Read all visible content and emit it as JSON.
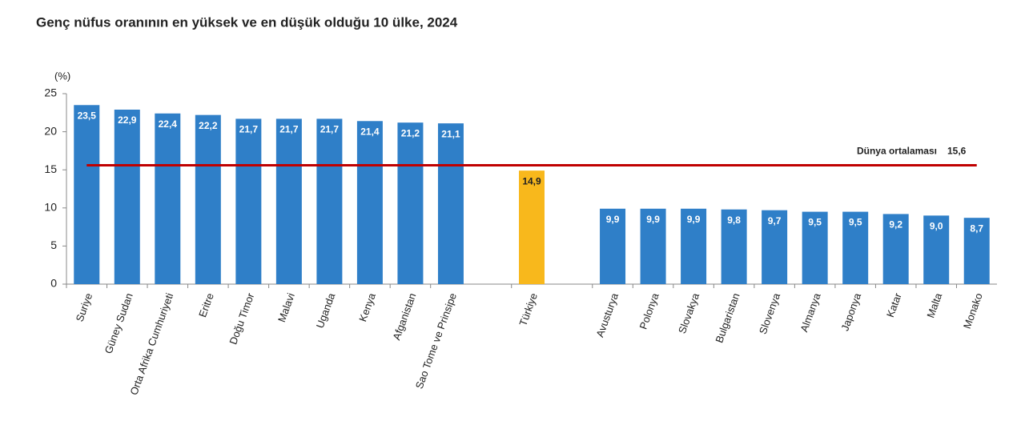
{
  "chart_data": {
    "type": "bar",
    "title": "Genç nüfus oranının en yüksek ve en düşük olduğu 10 ülke, 2024",
    "y_unit": "(%)",
    "categories": [
      "Suriye",
      "Güney Sudan",
      "Orta Afrika Cumhuriyeti",
      "Eritre",
      "Doğu Timor",
      "Malavi",
      "Uganda",
      "Kenya",
      "Afganistan",
      "Sao Tome ve Prinsipe",
      null,
      "Türkiye",
      null,
      "Avusturya",
      "Polonya",
      "Slovakya",
      "Bulgaristan",
      "Slovenya",
      "Almanya",
      "Japonya",
      "Katar",
      "Malta",
      "Monako"
    ],
    "values": [
      23.5,
      22.9,
      22.4,
      22.2,
      21.7,
      21.7,
      21.7,
      21.4,
      21.2,
      21.1,
      null,
      14.9,
      null,
      9.9,
      9.9,
      9.9,
      9.8,
      9.7,
      9.5,
      9.5,
      9.2,
      9.0,
      8.7
    ],
    "value_labels": [
      "23,5",
      "22,9",
      "22,4",
      "22,2",
      "21,7",
      "21,7",
      "21,7",
      "21,4",
      "21,2",
      "21,1",
      null,
      "14,9",
      null,
      "9,9",
      "9,9",
      "9,9",
      "9,8",
      "9,7",
      "9,5",
      "9,5",
      "9,2",
      "9,0",
      "8,7"
    ],
    "colors": [
      "#2f7fc8",
      "#2f7fc8",
      "#2f7fc8",
      "#2f7fc8",
      "#2f7fc8",
      "#2f7fc8",
      "#2f7fc8",
      "#2f7fc8",
      "#2f7fc8",
      "#2f7fc8",
      null,
      "#f8b81c",
      null,
      "#2f7fc8",
      "#2f7fc8",
      "#2f7fc8",
      "#2f7fc8",
      "#2f7fc8",
      "#2f7fc8",
      "#2f7fc8",
      "#2f7fc8",
      "#2f7fc8",
      "#2f7fc8"
    ],
    "value_label_colors": [
      "#ffffff",
      "#ffffff",
      "#ffffff",
      "#ffffff",
      "#ffffff",
      "#ffffff",
      "#ffffff",
      "#ffffff",
      "#ffffff",
      "#ffffff",
      null,
      "#222222",
      null,
      "#ffffff",
      "#ffffff",
      "#ffffff",
      "#ffffff",
      "#ffffff",
      "#ffffff",
      "#ffffff",
      "#ffffff",
      "#ffffff",
      "#ffffff"
    ],
    "reference_line": {
      "label": "Dünya ortalaması",
      "value": 15.6,
      "value_label": "15,6",
      "color": "#c00000"
    },
    "ylim": [
      0,
      25
    ],
    "yticks": [
      0,
      5,
      10,
      15,
      20,
      25
    ],
    "grid": false
  }
}
